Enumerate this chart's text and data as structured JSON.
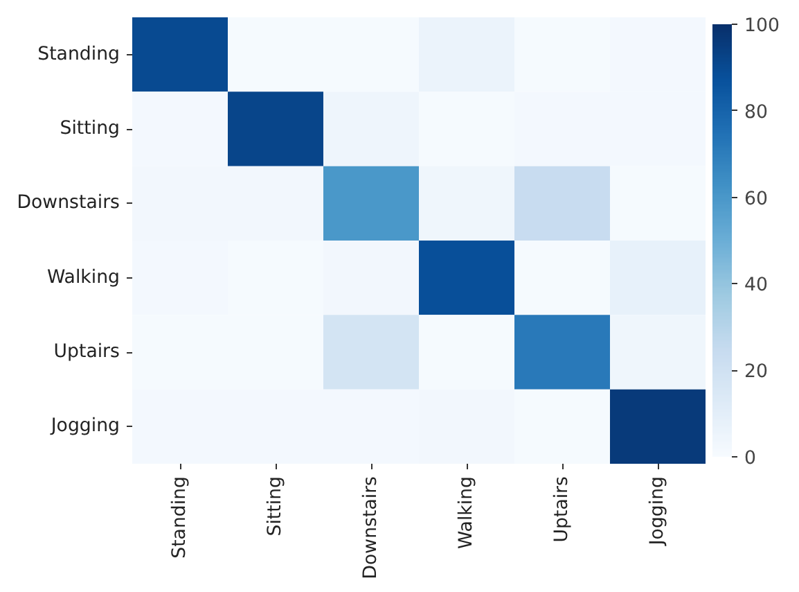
{
  "chart_data": {
    "type": "heatmap",
    "categories": [
      "Standing",
      "Sitting",
      "Downstairs",
      "Walking",
      "Uptairs",
      "Jogging"
    ],
    "y_categories": [
      "Standing",
      "Sitting",
      "Downstairs",
      "Walking",
      "Uptairs",
      "Jogging"
    ],
    "cells": [
      [
        90,
        1,
        1,
        6,
        1,
        2
      ],
      [
        2,
        92,
        5,
        1,
        2,
        2
      ],
      [
        3,
        3,
        60,
        4,
        24,
        1
      ],
      [
        2,
        1,
        3,
        88,
        1,
        8
      ],
      [
        1,
        1,
        18,
        1,
        72,
        4
      ],
      [
        2,
        2,
        2,
        3,
        1,
        96
      ]
    ],
    "clim": [
      0,
      100
    ],
    "cticks": [
      0,
      20,
      40,
      60,
      80,
      100
    ]
  }
}
